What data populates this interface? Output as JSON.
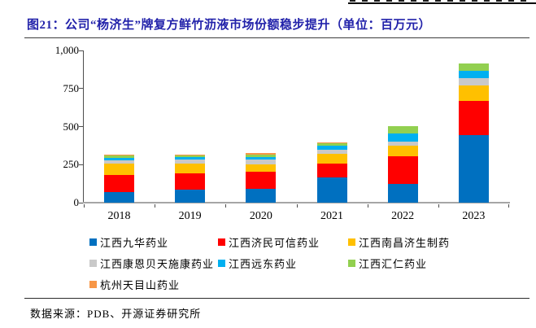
{
  "header": {
    "title": "图21：公司“杨济生”牌复方鲜竹沥液市场份额稳步提升（单位：百万元）"
  },
  "chart_data": {
    "type": "bar",
    "stacked": true,
    "title": "公司“杨济生”牌复方鲜竹沥液市场份额稳步提升",
    "unit": "百万元",
    "categories": [
      "2018",
      "2019",
      "2020",
      "2021",
      "2022",
      "2023"
    ],
    "series": [
      {
        "name": "江西九华药业",
        "color": "#0070C0",
        "values": [
          68,
          88,
          93,
          166,
          125,
          442
        ]
      },
      {
        "name": "江西济民可信药业",
        "color": "#FF0000",
        "values": [
          112,
          107,
          111,
          93,
          179,
          229
        ]
      },
      {
        "name": "江西南昌济生制药",
        "color": "#FFC000",
        "values": [
          78,
          63,
          50,
          63,
          71,
          98
        ]
      },
      {
        "name": "江西康恩贝天施康药业",
        "color": "#C9C9C9",
        "values": [
          20,
          23,
          32,
          27,
          27,
          50
        ]
      },
      {
        "name": "江西远东药业",
        "color": "#00B0F0",
        "values": [
          15,
          16,
          16,
          27,
          54,
          48
        ]
      },
      {
        "name": "江西汇仁药业",
        "color": "#92D050",
        "values": [
          18,
          18,
          16,
          20,
          45,
          45
        ]
      },
      {
        "name": "杭州天目山药业",
        "color": "#F79646",
        "values": [
          2,
          2,
          8,
          2,
          0,
          0
        ]
      }
    ],
    "totals": [
      313,
      317,
      326,
      398,
      501,
      912
    ],
    "xlabel": "",
    "ylabel": "",
    "ylim": [
      0,
      1000
    ],
    "yticks": [
      {
        "value": 0,
        "label": "0"
      },
      {
        "value": 250,
        "label": "250"
      },
      {
        "value": 500,
        "label": "500"
      },
      {
        "value": 750,
        "label": "750"
      },
      {
        "value": 1000,
        "label": "1,000"
      }
    ],
    "grid": false,
    "legend_position": "bottom",
    "legend_rows": [
      [
        0,
        1,
        2
      ],
      [
        3,
        4,
        5
      ],
      [
        6
      ]
    ],
    "legend_col_offsets": [
      0,
      158,
      318
    ]
  },
  "footer": {
    "source": "数据来源：PDB、开源证券研究所"
  }
}
